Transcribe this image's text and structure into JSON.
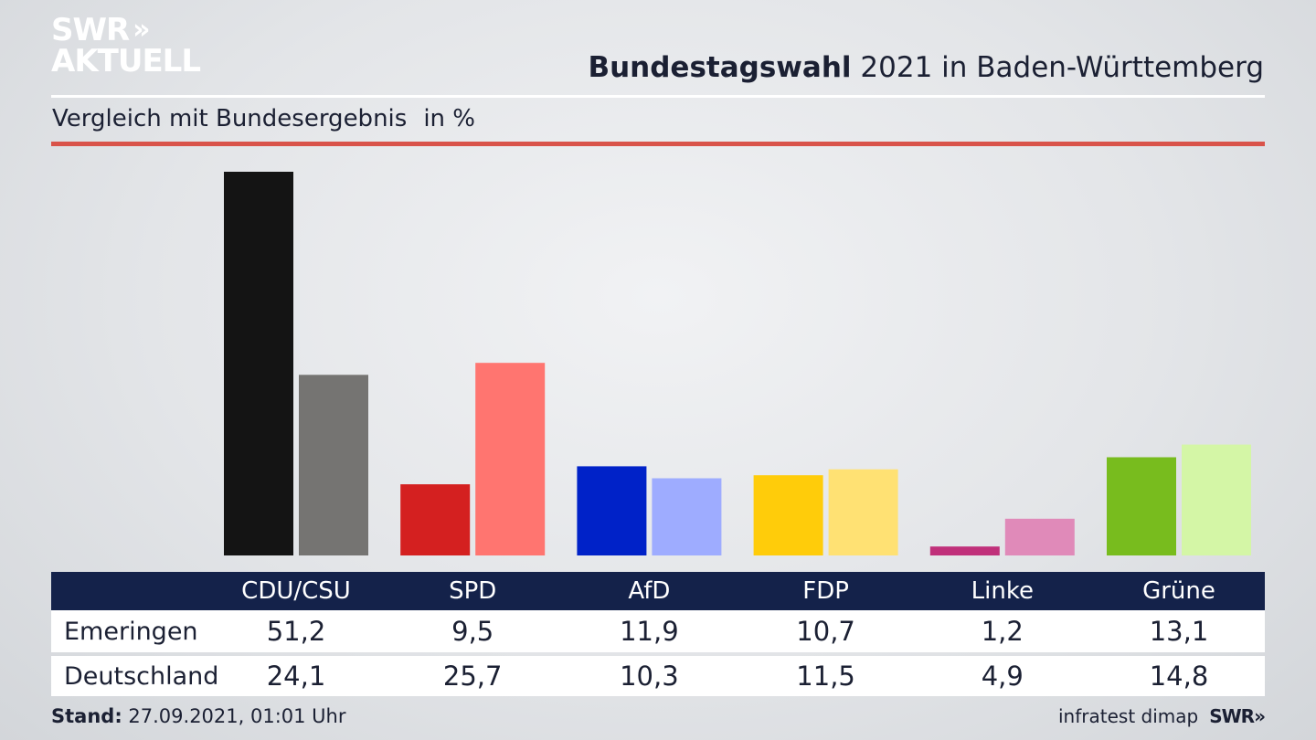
{
  "logo": {
    "line1": "SWR",
    "chevrons": "»",
    "line2": "AKTUELL"
  },
  "header": {
    "title_bold": "Bundestagswahl",
    "title_rest": " 2021 in Baden-Württemberg",
    "subtitle": "Vergleich mit Bundesergebnis",
    "unit": "in %"
  },
  "chart_data": {
    "type": "bar",
    "categories": [
      "CDU/CSU",
      "SPD",
      "AfD",
      "FDP",
      "Linke",
      "Grüne"
    ],
    "series": [
      {
        "name": "Emeringen",
        "values": [
          51.2,
          9.5,
          11.9,
          10.7,
          1.2,
          13.1
        ],
        "colors": [
          "#141414",
          "#d42020",
          "#0022c8",
          "#ffcc0a",
          "#c0307a",
          "#78bc1e"
        ]
      },
      {
        "name": "Deutschland",
        "values": [
          24.1,
          25.7,
          10.3,
          11.5,
          4.9,
          14.8
        ],
        "colors": [
          "#757472",
          "#ff7570",
          "#9eacff",
          "#ffe173",
          "#e08ab9",
          "#d4f6a6"
        ]
      }
    ],
    "ylim": [
      0,
      51.2
    ],
    "grid": false
  },
  "table": {
    "rows": [
      {
        "label": "Emeringen",
        "values": [
          "51,2",
          "9,5",
          "11,9",
          "10,7",
          "1,2",
          "13,1"
        ]
      },
      {
        "label": "Deutschland",
        "values": [
          "24,1",
          "25,7",
          "10,3",
          "11,5",
          "4,9",
          "14,8"
        ]
      }
    ]
  },
  "footer": {
    "stand_label": "Stand:",
    "stand_value": " 27.09.2021, 01:01 Uhr",
    "source": "infratest dimap",
    "brand": "SWR»"
  },
  "colors": {
    "header_bg": "#14224a",
    "accent_red": "#d9534a"
  }
}
